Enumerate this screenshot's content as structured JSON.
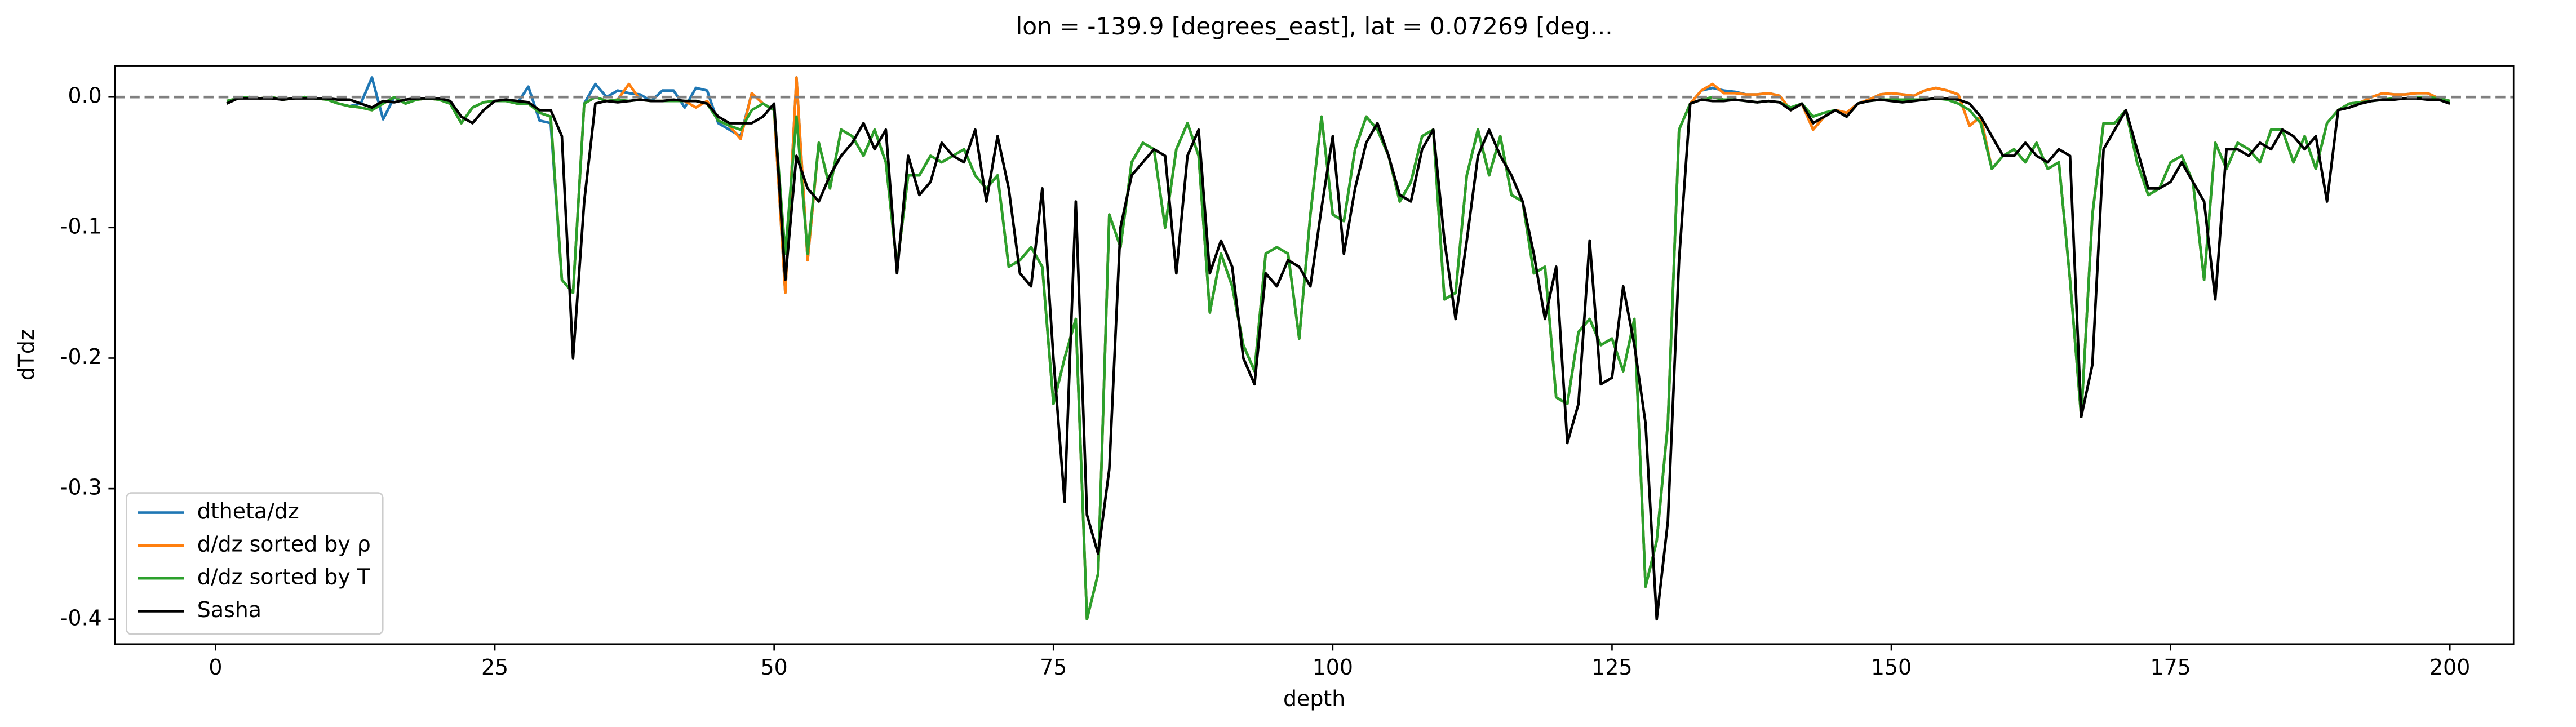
{
  "chart_data": {
    "type": "line",
    "title": "lon = -139.9 [degrees_east], lat = 0.07269 [deg...",
    "xlabel": "depth",
    "ylabel": "dTdz",
    "xlim": [
      -9,
      205.7
    ],
    "ylim": [
      -0.419,
      0.024
    ],
    "xticks": [
      0,
      25,
      50,
      75,
      100,
      125,
      150,
      175,
      200
    ],
    "yticks": [
      {
        "value": 0,
        "label": "0.0"
      },
      {
        "value": -0.1,
        "label": "-0.1"
      },
      {
        "value": -0.2,
        "label": "-0.2"
      },
      {
        "value": -0.3,
        "label": "-0.3"
      },
      {
        "value": -0.4,
        "label": "-0.4"
      }
    ],
    "hlines": [
      0
    ],
    "legend": "lower left",
    "x": [
      1,
      2,
      3,
      4,
      5,
      6,
      7,
      8,
      9,
      10,
      11,
      12,
      13,
      14,
      15,
      16,
      17,
      18,
      19,
      20,
      21,
      22,
      23,
      24,
      25,
      26,
      27,
      28,
      29,
      30,
      31,
      32,
      33,
      34,
      35,
      36,
      37,
      38,
      39,
      40,
      41,
      42,
      43,
      44,
      45,
      46,
      47,
      48,
      49,
      50,
      51,
      52,
      53,
      54,
      55,
      56,
      57,
      58,
      59,
      60,
      61,
      62,
      63,
      64,
      65,
      66,
      67,
      68,
      69,
      70,
      71,
      72,
      73,
      74,
      75,
      76,
      77,
      78,
      79,
      80,
      81,
      82,
      83,
      84,
      85,
      86,
      87,
      88,
      89,
      90,
      91,
      92,
      93,
      94,
      95,
      96,
      97,
      98,
      99,
      100,
      101,
      102,
      103,
      104,
      105,
      106,
      107,
      108,
      109,
      110,
      111,
      112,
      113,
      114,
      115,
      116,
      117,
      118,
      119,
      120,
      121,
      122,
      123,
      124,
      125,
      126,
      127,
      128,
      129,
      130,
      131,
      132,
      133,
      134,
      135,
      136,
      137,
      138,
      139,
      140,
      141,
      142,
      143,
      144,
      145,
      146,
      147,
      148,
      149,
      150,
      151,
      152,
      153,
      154,
      155,
      156,
      157,
      158,
      159,
      160,
      161,
      162,
      163,
      164,
      165,
      166,
      167,
      168,
      169,
      170,
      171,
      172,
      173,
      174,
      175,
      176,
      177,
      178,
      179,
      180,
      181,
      182,
      183,
      184,
      185,
      186,
      187,
      188,
      189,
      190,
      191,
      192,
      193,
      194,
      195,
      196,
      197,
      198,
      199,
      200
    ],
    "series": [
      {
        "name": "dtheta/dz",
        "color": "#1f77b4",
        "values": [
          -0.003,
          -0.001,
          0,
          -0.001,
          0,
          -0.002,
          -0.001,
          0,
          -0.001,
          -0.002,
          -0.005,
          -0.007,
          -0.005,
          0.015,
          -0.017,
          0,
          -0.005,
          -0.002,
          -0.001,
          -0.002,
          -0.005,
          -0.02,
          -0.008,
          -0.004,
          -0.003,
          -0.003,
          -0.005,
          0.008,
          -0.018,
          -0.02,
          -0.14,
          -0.15,
          -0.005,
          0.01,
          0,
          0.005,
          0.003,
          0.002,
          -0.003,
          0.005,
          0.005,
          -0.008,
          0.007,
          0.005,
          -0.02,
          -0.025,
          -0.03,
          0.003,
          -0.005,
          -0.01,
          -0.15,
          0.015,
          -0.125,
          -0.035,
          -0.07,
          -0.025,
          -0.03,
          -0.045,
          -0.025,
          -0.05,
          -0.13,
          -0.06,
          -0.06,
          -0.045,
          -0.05,
          -0.045,
          -0.04,
          -0.06,
          -0.07,
          -0.06,
          -0.13,
          -0.125,
          -0.115,
          -0.13,
          -0.235,
          -0.2,
          -0.17,
          -0.4,
          -0.365,
          -0.09,
          -0.115,
          -0.05,
          -0.035,
          -0.04,
          -0.1,
          -0.04,
          -0.02,
          -0.045,
          -0.165,
          -0.12,
          -0.145,
          -0.19,
          -0.21,
          -0.12,
          -0.115,
          -0.12,
          -0.185,
          -0.09,
          -0.015,
          -0.09,
          -0.095,
          -0.04,
          -0.015,
          -0.025,
          -0.045,
          -0.08,
          -0.065,
          -0.03,
          -0.025,
          -0.155,
          -0.15,
          -0.06,
          -0.025,
          -0.06,
          -0.03,
          -0.075,
          -0.08,
          -0.135,
          -0.13,
          -0.23,
          -0.235,
          -0.18,
          -0.17,
          -0.19,
          -0.185,
          -0.21,
          -0.17,
          -0.375,
          -0.34,
          -0.25,
          -0.025,
          -0.005,
          0.005,
          0.007,
          0.005,
          0.004,
          0.002,
          0.002,
          0.003,
          0.001,
          -0.01,
          -0.005,
          -0.025,
          -0.015,
          -0.01,
          -0.012,
          -0.005,
          -0.002,
          0.002,
          0.003,
          0.002,
          0.001,
          0.005,
          0.007,
          0.005,
          0.002,
          -0.022,
          -0.015,
          -0.055,
          -0.045,
          -0.04,
          -0.05,
          -0.035,
          -0.055,
          -0.05,
          -0.14,
          -0.245,
          -0.09,
          -0.02,
          -0.02,
          -0.01,
          -0.05,
          -0.075,
          -0.07,
          -0.05,
          -0.045,
          -0.065,
          -0.14,
          -0.035,
          -0.055,
          -0.035,
          -0.04,
          -0.05,
          -0.025,
          -0.025,
          -0.05,
          -0.03,
          -0.055,
          -0.02,
          -0.01,
          -0.005,
          -0.004,
          0,
          0.003,
          0.002,
          0.002,
          0.003,
          0.003,
          -0.001,
          -0.003
        ]
      },
      {
        "name": "d/dz sorted by ρ",
        "color": "#ff7f0e",
        "values": [
          -0.003,
          -0.001,
          0,
          -0.001,
          0,
          -0.002,
          -0.001,
          0,
          -0.001,
          -0.002,
          -0.005,
          -0.007,
          -0.008,
          -0.01,
          -0.005,
          0,
          -0.005,
          -0.002,
          -0.001,
          -0.002,
          -0.005,
          -0.02,
          -0.008,
          -0.004,
          -0.003,
          -0.003,
          -0.005,
          -0.005,
          -0.012,
          -0.015,
          -0.14,
          -0.15,
          -0.005,
          0,
          -0.003,
          -0.002,
          0.01,
          -0.002,
          -0.003,
          -0.003,
          -0.003,
          -0.003,
          -0.008,
          -0.003,
          -0.018,
          -0.022,
          -0.032,
          0.003,
          -0.005,
          -0.01,
          -0.15,
          0.015,
          -0.125,
          -0.035,
          -0.07,
          -0.025,
          -0.03,
          -0.045,
          -0.025,
          -0.05,
          -0.13,
          -0.06,
          -0.06,
          -0.045,
          -0.05,
          -0.045,
          -0.04,
          -0.06,
          -0.07,
          -0.06,
          -0.13,
          -0.125,
          -0.115,
          -0.13,
          -0.235,
          -0.2,
          -0.17,
          -0.4,
          -0.365,
          -0.09,
          -0.115,
          -0.05,
          -0.035,
          -0.04,
          -0.1,
          -0.04,
          -0.02,
          -0.045,
          -0.165,
          -0.12,
          -0.145,
          -0.19,
          -0.21,
          -0.12,
          -0.115,
          -0.12,
          -0.185,
          -0.09,
          -0.015,
          -0.09,
          -0.095,
          -0.04,
          -0.015,
          -0.025,
          -0.045,
          -0.08,
          -0.065,
          -0.03,
          -0.025,
          -0.155,
          -0.15,
          -0.06,
          -0.025,
          -0.06,
          -0.03,
          -0.075,
          -0.08,
          -0.135,
          -0.13,
          -0.23,
          -0.235,
          -0.18,
          -0.17,
          -0.19,
          -0.185,
          -0.21,
          -0.17,
          -0.375,
          -0.34,
          -0.25,
          -0.025,
          -0.005,
          0.005,
          0.01,
          0.003,
          0.003,
          0.002,
          0.002,
          0.003,
          0.001,
          -0.01,
          -0.005,
          -0.025,
          -0.015,
          -0.01,
          -0.012,
          -0.005,
          -0.002,
          0.002,
          0.003,
          0.002,
          0.001,
          0.005,
          0.007,
          0.005,
          0.002,
          -0.022,
          -0.015,
          -0.055,
          -0.045,
          -0.04,
          -0.05,
          -0.035,
          -0.055,
          -0.05,
          -0.14,
          -0.245,
          -0.09,
          -0.02,
          -0.02,
          -0.01,
          -0.05,
          -0.075,
          -0.07,
          -0.05,
          -0.045,
          -0.065,
          -0.14,
          -0.035,
          -0.055,
          -0.035,
          -0.04,
          -0.05,
          -0.025,
          -0.025,
          -0.05,
          -0.03,
          -0.055,
          -0.02,
          -0.01,
          -0.005,
          -0.004,
          0,
          0.003,
          0.002,
          0.002,
          0.003,
          0.003,
          -0.001,
          -0.003
        ]
      },
      {
        "name": "d/dz sorted by T",
        "color": "#2ca02c",
        "values": [
          -0.003,
          -0.001,
          0,
          -0.001,
          0,
          -0.002,
          -0.001,
          0,
          -0.001,
          -0.002,
          -0.005,
          -0.007,
          -0.008,
          -0.01,
          -0.005,
          0,
          -0.005,
          -0.002,
          -0.001,
          -0.002,
          -0.005,
          -0.02,
          -0.008,
          -0.004,
          -0.003,
          -0.003,
          -0.005,
          -0.005,
          -0.012,
          -0.015,
          -0.14,
          -0.15,
          -0.005,
          0,
          -0.003,
          -0.002,
          -0.003,
          -0.002,
          -0.003,
          -0.003,
          -0.003,
          -0.003,
          -0.003,
          -0.005,
          -0.018,
          -0.022,
          -0.025,
          -0.01,
          -0.005,
          -0.01,
          -0.12,
          -0.015,
          -0.12,
          -0.035,
          -0.07,
          -0.025,
          -0.03,
          -0.045,
          -0.025,
          -0.05,
          -0.13,
          -0.06,
          -0.06,
          -0.045,
          -0.05,
          -0.045,
          -0.04,
          -0.06,
          -0.07,
          -0.06,
          -0.13,
          -0.125,
          -0.115,
          -0.13,
          -0.235,
          -0.2,
          -0.17,
          -0.4,
          -0.365,
          -0.09,
          -0.115,
          -0.05,
          -0.035,
          -0.04,
          -0.1,
          -0.04,
          -0.02,
          -0.045,
          -0.165,
          -0.12,
          -0.145,
          -0.19,
          -0.21,
          -0.12,
          -0.115,
          -0.12,
          -0.185,
          -0.09,
          -0.015,
          -0.09,
          -0.095,
          -0.04,
          -0.015,
          -0.025,
          -0.045,
          -0.08,
          -0.065,
          -0.03,
          -0.025,
          -0.155,
          -0.15,
          -0.06,
          -0.025,
          -0.06,
          -0.03,
          -0.075,
          -0.08,
          -0.135,
          -0.13,
          -0.23,
          -0.235,
          -0.18,
          -0.17,
          -0.19,
          -0.185,
          -0.21,
          -0.17,
          -0.375,
          -0.34,
          -0.25,
          -0.025,
          -0.005,
          -0.002,
          0,
          -0.002,
          -0.002,
          -0.003,
          -0.004,
          -0.003,
          -0.004,
          -0.008,
          -0.005,
          -0.015,
          -0.012,
          -0.01,
          -0.015,
          -0.005,
          -0.003,
          -0.002,
          -0.002,
          -0.002,
          -0.002,
          -0.002,
          -0.001,
          -0.002,
          -0.005,
          -0.01,
          -0.02,
          -0.055,
          -0.045,
          -0.04,
          -0.05,
          -0.035,
          -0.055,
          -0.05,
          -0.14,
          -0.245,
          -0.09,
          -0.02,
          -0.02,
          -0.01,
          -0.05,
          -0.075,
          -0.07,
          -0.05,
          -0.045,
          -0.065,
          -0.14,
          -0.035,
          -0.055,
          -0.035,
          -0.04,
          -0.05,
          -0.025,
          -0.025,
          -0.05,
          -0.03,
          -0.055,
          -0.02,
          -0.01,
          -0.005,
          -0.004,
          -0.003,
          -0.002,
          -0.001,
          -0.001,
          0,
          0,
          -0.001,
          -0.003
        ]
      },
      {
        "name": "Sasha",
        "color": "#000000",
        "values": [
          -0.005,
          -0.001,
          -0.001,
          -0.001,
          -0.001,
          -0.002,
          -0.001,
          -0.001,
          -0.001,
          -0.001,
          -0.002,
          -0.002,
          -0.005,
          -0.008,
          -0.003,
          -0.004,
          -0.002,
          -0.001,
          -0.001,
          -0.001,
          -0.003,
          -0.015,
          -0.02,
          -0.01,
          -0.003,
          -0.002,
          -0.003,
          -0.004,
          -0.01,
          -0.01,
          -0.03,
          -0.2,
          -0.08,
          -0.005,
          -0.003,
          -0.004,
          -0.003,
          -0.002,
          -0.003,
          -0.003,
          -0.002,
          -0.003,
          -0.003,
          -0.005,
          -0.015,
          -0.02,
          -0.02,
          -0.02,
          -0.015,
          -0.005,
          -0.14,
          -0.045,
          -0.07,
          -0.08,
          -0.06,
          -0.045,
          -0.035,
          -0.02,
          -0.04,
          -0.025,
          -0.135,
          -0.045,
          -0.075,
          -0.065,
          -0.035,
          -0.045,
          -0.05,
          -0.025,
          -0.08,
          -0.03,
          -0.07,
          -0.135,
          -0.145,
          -0.07,
          -0.2,
          -0.31,
          -0.08,
          -0.32,
          -0.35,
          -0.285,
          -0.1,
          -0.06,
          -0.05,
          -0.04,
          -0.045,
          -0.135,
          -0.045,
          -0.025,
          -0.135,
          -0.11,
          -0.13,
          -0.2,
          -0.22,
          -0.135,
          -0.145,
          -0.125,
          -0.13,
          -0.145,
          -0.085,
          -0.03,
          -0.12,
          -0.07,
          -0.035,
          -0.02,
          -0.045,
          -0.075,
          -0.08,
          -0.04,
          -0.025,
          -0.11,
          -0.17,
          -0.11,
          -0.045,
          -0.025,
          -0.045,
          -0.06,
          -0.08,
          -0.12,
          -0.17,
          -0.13,
          -0.265,
          -0.235,
          -0.11,
          -0.22,
          -0.215,
          -0.145,
          -0.19,
          -0.25,
          -0.4,
          -0.325,
          -0.125,
          -0.005,
          -0.002,
          -0.003,
          -0.003,
          -0.002,
          -0.003,
          -0.004,
          -0.003,
          -0.004,
          -0.01,
          -0.005,
          -0.02,
          -0.015,
          -0.01,
          -0.015,
          -0.005,
          -0.003,
          -0.002,
          -0.003,
          -0.004,
          -0.003,
          -0.002,
          -0.001,
          -0.001,
          -0.002,
          -0.005,
          -0.015,
          -0.03,
          -0.045,
          -0.045,
          -0.035,
          -0.045,
          -0.05,
          -0.04,
          -0.045,
          -0.245,
          -0.205,
          -0.04,
          -0.025,
          -0.01,
          -0.04,
          -0.07,
          -0.07,
          -0.065,
          -0.05,
          -0.065,
          -0.08,
          -0.155,
          -0.04,
          -0.04,
          -0.045,
          -0.035,
          -0.04,
          -0.025,
          -0.03,
          -0.04,
          -0.03,
          -0.08,
          -0.01,
          -0.008,
          -0.005,
          -0.003,
          -0.002,
          -0.002,
          -0.001,
          -0.001,
          -0.002,
          -0.002,
          -0.005
        ]
      }
    ]
  }
}
